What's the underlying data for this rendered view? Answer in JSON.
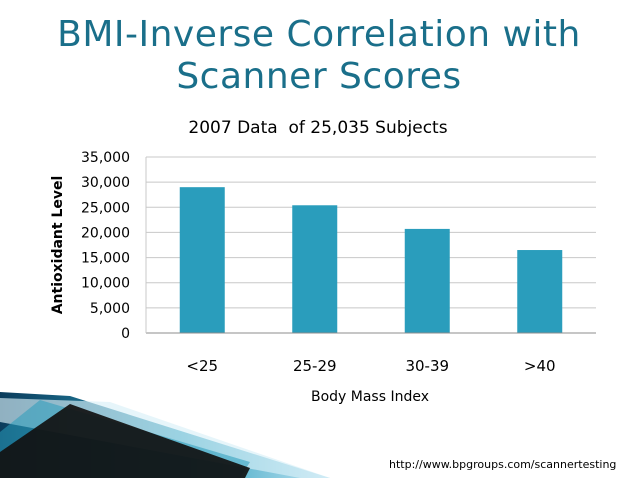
{
  "slide": {
    "title_line1": "BMI-Inverse Correlation with",
    "title_line2": "Scanner Scores",
    "footer_url": "http://www.bpgroups.com/scannertesting"
  },
  "colors": {
    "title": "#1a6f8a",
    "bar": "#2a9dbc",
    "grid": "#c8c8c8",
    "decor_dark": "#0b3c5c",
    "decor_light": "#bfe3f2"
  },
  "chart_data": {
    "type": "bar",
    "title": "2007 Data  of 25,035 Subjects",
    "xlabel": "Body Mass Index",
    "ylabel": "Antioxidant Level",
    "categories": [
      "<25",
      "25-29",
      "30-39",
      ">40"
    ],
    "values": [
      29000,
      25400,
      20700,
      16500
    ],
    "ylim": [
      0,
      35000
    ],
    "yticks": [
      0,
      5000,
      10000,
      15000,
      20000,
      25000,
      30000,
      35000
    ],
    "ytick_labels": [
      "0",
      "5,000",
      "10,000",
      "15,000",
      "20,000",
      "25,000",
      "30,000",
      "35,000"
    ],
    "grid": true,
    "legend": "none"
  }
}
